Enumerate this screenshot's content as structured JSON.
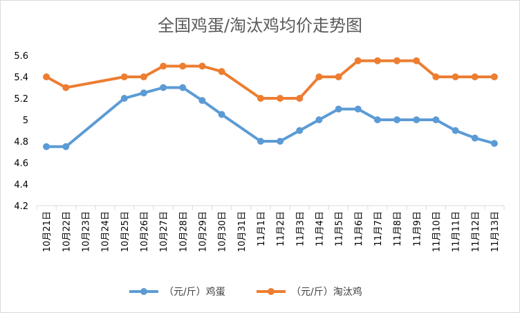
{
  "chart_data": {
    "type": "line",
    "title": "全国鸡蛋/淘汰鸡均价走势图",
    "categories": [
      "10月21日",
      "10月22日",
      "10月23日",
      "10月24日",
      "10月25日",
      "10月26日",
      "10月27日",
      "10月28日",
      "10月29日",
      "10月30日",
      "10月31日",
      "11月1日",
      "11月2日",
      "11月3日",
      "11月4日",
      "11月5日",
      "11月6日",
      "11月7日",
      "11月8日",
      "11月9日",
      "11月10日",
      "11月11日",
      "11月12日",
      "11月13日"
    ],
    "series": [
      {
        "name": "（元/斤）鸡蛋",
        "color": "#5b9bd5",
        "values": [
          4.75,
          4.75,
          null,
          null,
          5.2,
          5.25,
          5.3,
          5.3,
          5.18,
          5.05,
          null,
          4.8,
          4.8,
          4.9,
          5.0,
          5.1,
          5.1,
          5.0,
          5.0,
          5.0,
          5.0,
          4.9,
          4.83,
          4.78
        ]
      },
      {
        "name": "（元/斤）淘汰鸡",
        "color": "#ed7d31",
        "values": [
          5.4,
          5.3,
          null,
          null,
          5.4,
          5.4,
          5.5,
          5.5,
          5.5,
          5.45,
          null,
          5.2,
          5.2,
          5.2,
          5.4,
          5.4,
          5.55,
          5.55,
          5.55,
          5.55,
          5.4,
          5.4,
          5.4,
          5.4
        ]
      }
    ],
    "ylim": [
      4.2,
      5.6
    ],
    "yticks": [
      4.2,
      4.4,
      4.6,
      4.8,
      5,
      5.2,
      5.4,
      5.6
    ],
    "grid": false,
    "gaps": "span",
    "legend": "bottom"
  }
}
